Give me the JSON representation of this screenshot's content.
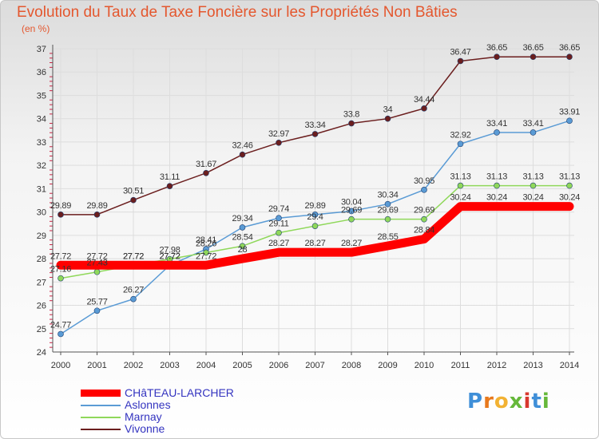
{
  "title": "Evolution du Taux de Taxe Foncière sur les Propriétés Non Bâties",
  "subtitle": "(en %)",
  "logo": {
    "letters": [
      "P",
      "r",
      "o",
      "x",
      "i",
      "t",
      "i"
    ]
  },
  "colors": {
    "CHaTEAU-LARCHER": "#ff0000",
    "Aslonnes": "#5a9bd5",
    "Marnay": "#8fd85a",
    "Vivonne": "#6b1e1e",
    "axis": "#555555",
    "grid": "#dddddd",
    "tick_text": "#333333",
    "minor_tick": "#cc2244"
  },
  "chart_data": {
    "type": "line",
    "title": "Evolution du Taux de Taxe Foncière sur les Propriétés Non Bâties",
    "ylabel": "(en %)",
    "xlabel": "",
    "ylim": [
      24,
      37
    ],
    "yticks": [
      24,
      25,
      26,
      27,
      28,
      29,
      30,
      31,
      32,
      33,
      34,
      35,
      36,
      37
    ],
    "categories": [
      "2000",
      "2001",
      "2002",
      "2003",
      "2004",
      "2005",
      "2006",
      "2007",
      "2008",
      "2009",
      "2010",
      "2011",
      "2012",
      "2013",
      "2014"
    ],
    "legend_position": "bottom-left",
    "grid": true,
    "series": [
      {
        "name": "CHâTEAU-LARCHER",
        "key": "CHaTEAU-LARCHER",
        "values": [
          27.72,
          27.72,
          27.72,
          27.72,
          27.72,
          28,
          28.27,
          28.27,
          28.27,
          28.55,
          28.84,
          30.24,
          30.24,
          30.24,
          30.24
        ],
        "labels": [
          "27.72",
          "27.72",
          "27.72",
          "27.72",
          "27.72",
          "28",
          "28.27",
          "28.27",
          "28.27",
          "28.55",
          "28.84",
          "30.24",
          "30.24",
          "30.24",
          "30.24"
        ]
      },
      {
        "name": "Aslonnes",
        "key": "Aslonnes",
        "values": [
          24.77,
          25.77,
          26.27,
          27.72,
          28.41,
          29.34,
          29.74,
          29.89,
          30.04,
          30.34,
          30.95,
          32.92,
          33.41,
          33.41,
          33.91
        ],
        "labels": [
          "24.77",
          "25.77",
          "26.27",
          "27.72",
          "28.41",
          "29.34",
          "29.74",
          "29.89",
          "30.04",
          "30.34",
          "30.95",
          "32.92",
          "33.41",
          "33.41",
          "33.91"
        ]
      },
      {
        "name": "Marnay",
        "key": "Marnay",
        "values": [
          27.16,
          27.43,
          27.72,
          27.98,
          28.26,
          28.54,
          29.11,
          29.4,
          29.69,
          29.69,
          29.69,
          31.13,
          31.13,
          31.13,
          31.13
        ],
        "labels": [
          "27.16",
          "27.43",
          "27.72",
          "27.98",
          "28.26",
          "28.54",
          "29.11",
          "29.4",
          "29.69",
          "29.69",
          "29.69",
          "31.13",
          "31.13",
          "31.13",
          "31.13"
        ]
      },
      {
        "name": "Vivonne",
        "key": "Vivonne",
        "values": [
          29.89,
          29.89,
          30.51,
          31.11,
          31.67,
          32.46,
          32.97,
          33.34,
          33.8,
          34,
          34.44,
          36.47,
          36.65,
          36.65,
          36.65
        ],
        "labels": [
          "29.89",
          "29.89",
          "30.51",
          "31.11",
          "31.67",
          "32.46",
          "32.97",
          "33.34",
          "33.8",
          "34",
          "34.44",
          "36.47",
          "36.65",
          "36.65",
          "36.65"
        ]
      }
    ]
  }
}
